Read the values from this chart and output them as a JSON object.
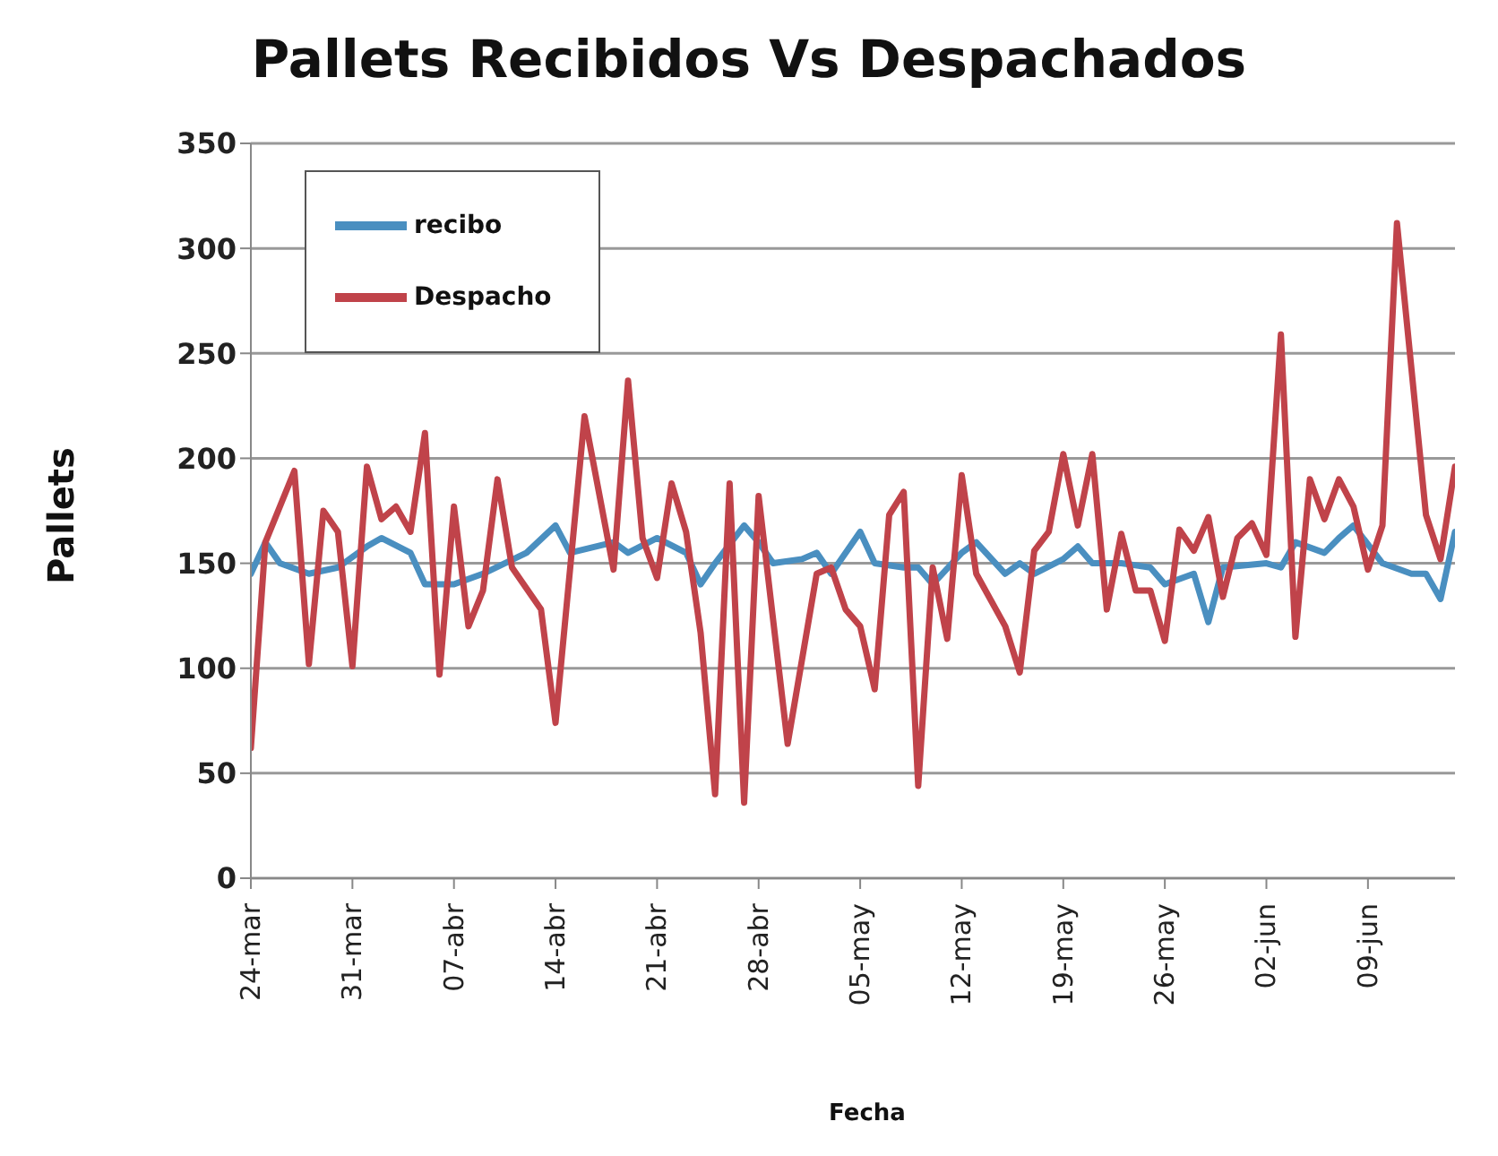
{
  "chart_data": {
    "type": "line",
    "title": "Pallets Recibidos  Vs Despachados",
    "xlabel": "Fecha",
    "ylabel": "Pallets",
    "xlim": [
      "--03-24",
      "--06-15"
    ],
    "xticks": [
      {
        "value": "--03-24",
        "label": "24-mar"
      },
      {
        "value": "--03-31",
        "label": "31-mar"
      },
      {
        "value": "--04-07",
        "label": "07-abr"
      },
      {
        "value": "--04-14",
        "label": "14-abr"
      },
      {
        "value": "--04-21",
        "label": "21-abr"
      },
      {
        "value": "--04-28",
        "label": "28-abr"
      },
      {
        "value": "--05-05",
        "label": "05-may"
      },
      {
        "value": "--05-12",
        "label": "12-may"
      },
      {
        "value": "--05-19",
        "label": "19-may"
      },
      {
        "value": "--05-26",
        "label": "26-may"
      },
      {
        "value": "--06-02",
        "label": "02-jun"
      },
      {
        "value": "--06-09",
        "label": "09-jun"
      }
    ],
    "ylim": [
      0,
      350
    ],
    "yticks": [
      0,
      50,
      100,
      150,
      200,
      250,
      300,
      350
    ],
    "grid": "y",
    "legend": "top left",
    "marker": "none",
    "line_style": "solid",
    "series": [
      {
        "name": "recibo",
        "color": "#4a8fc0",
        "x": [
          "--03-24",
          "--03-25",
          "--03-26",
          "--03-28",
          "--03-30",
          "--04-01",
          "--04-02",
          "--04-04",
          "--04-05",
          "--04-07",
          "--04-09",
          "--04-12",
          "--04-14",
          "--04-15",
          "--04-18",
          "--04-19",
          "--04-21",
          "--04-23",
          "--04-24",
          "--04-25",
          "--04-27",
          "--04-28",
          "--04-29",
          "--05-01",
          "--05-02",
          "--05-03",
          "--05-05",
          "--05-06",
          "--05-08",
          "--05-09",
          "--05-10",
          "--05-12",
          "--05-13",
          "--05-15",
          "--05-16",
          "--05-17",
          "--05-19",
          "--05-20",
          "--05-21",
          "--05-23",
          "--05-25",
          "--05-26",
          "--05-28",
          "--05-29",
          "--05-30",
          "--06-02",
          "--06-03",
          "--06-04",
          "--06-06",
          "--06-07",
          "--06-08",
          "--06-10",
          "--06-12",
          "--06-13",
          "--06-14",
          "--06-15"
        ],
        "values": [
          145,
          160,
          150,
          145,
          148,
          158,
          162,
          155,
          140,
          140,
          145,
          155,
          168,
          155,
          160,
          155,
          162,
          155,
          140,
          150,
          168,
          160,
          150,
          152,
          155,
          145,
          165,
          150,
          148,
          148,
          140,
          155,
          160,
          145,
          150,
          145,
          152,
          158,
          150,
          150,
          148,
          140,
          145,
          122,
          148,
          150,
          148,
          160,
          155,
          162,
          168,
          150,
          145,
          145,
          133,
          165
        ]
      },
      {
        "name": "Despacho",
        "color": "#c0434a",
        "x": [
          "--03-24",
          "--03-25",
          "--03-27",
          "--03-28",
          "--03-29",
          "--03-30",
          "--03-31",
          "--04-01",
          "--04-02",
          "--04-03",
          "--04-04",
          "--04-05",
          "--04-06",
          "--04-07",
          "--04-08",
          "--04-09",
          "--04-10",
          "--04-11",
          "--04-13",
          "--04-14",
          "--04-16",
          "--04-18",
          "--04-19",
          "--04-20",
          "--04-21",
          "--04-22",
          "--04-23",
          "--04-24",
          "--04-25",
          "--04-26",
          "--04-27",
          "--04-28",
          "--04-30",
          "--05-02",
          "--05-03",
          "--05-04",
          "--05-05",
          "--05-06",
          "--05-07",
          "--05-08",
          "--05-09",
          "--05-10",
          "--05-11",
          "--05-12",
          "--05-13",
          "--05-15",
          "--05-16",
          "--05-17",
          "--05-18",
          "--05-19",
          "--05-20",
          "--05-21",
          "--05-22",
          "--05-23",
          "--05-24",
          "--05-25",
          "--05-26",
          "--05-27",
          "--05-28",
          "--05-29",
          "--05-30",
          "--05-31",
          "--06-01",
          "--06-02",
          "--06-03",
          "--06-04",
          "--06-05",
          "--06-06",
          "--06-07",
          "--06-08",
          "--06-09",
          "--06-10",
          "--06-11",
          "--06-13",
          "--06-14",
          "--06-15"
        ],
        "values": [
          62,
          160,
          194,
          102,
          175,
          165,
          101,
          196,
          171,
          177,
          165,
          212,
          97,
          177,
          120,
          137,
          190,
          148,
          128,
          74,
          220,
          147,
          237,
          162,
          143,
          188,
          165,
          117,
          40,
          188,
          36,
          182,
          64,
          145,
          148,
          128,
          120,
          90,
          173,
          184,
          44,
          148,
          114,
          192,
          145,
          120,
          98,
          156,
          165,
          202,
          168,
          202,
          128,
          164,
          137,
          137,
          113,
          166,
          156,
          172,
          134,
          162,
          169,
          154,
          259,
          115,
          190,
          171,
          190,
          177,
          147,
          168,
          312,
          173,
          152,
          196
        ]
      }
    ]
  }
}
